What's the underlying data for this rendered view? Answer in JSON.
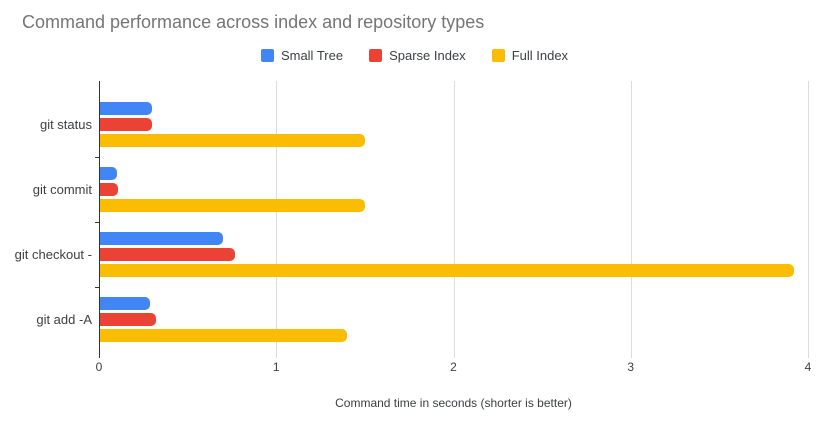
{
  "chart_data": {
    "type": "bar",
    "orientation": "horizontal",
    "title": "Command performance across index and repository types",
    "xlabel": "Command time in seconds (shorter is better)",
    "categories": [
      "git status",
      "git commit",
      "git checkout -",
      "git add -A"
    ],
    "series": [
      {
        "name": "Small Tree",
        "color": "#4285f4",
        "values": [
          0.3,
          0.1,
          0.7,
          0.29
        ]
      },
      {
        "name": "Sparse Index",
        "color": "#ea4335",
        "values": [
          0.3,
          0.11,
          0.77,
          0.32
        ]
      },
      {
        "name": "Full Index",
        "color": "#fbbc04",
        "values": [
          1.5,
          1.5,
          3.92,
          1.4
        ]
      }
    ],
    "xlim": [
      0,
      4
    ],
    "x_ticks": [
      "0",
      "1",
      "2",
      "3",
      "4"
    ],
    "legend_position": "top",
    "grid": true
  },
  "style": {
    "background": "#ffffff",
    "title_color": "#757575",
    "axis_text_color": "#3c4043",
    "gridline_color": "#dadce0",
    "axis_line_color": "#333333"
  }
}
